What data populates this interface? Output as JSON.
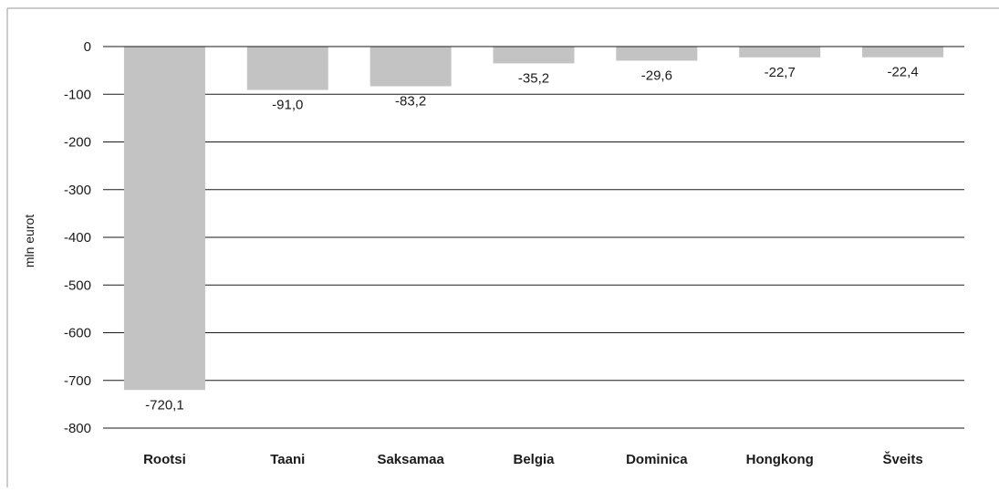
{
  "chart_data": {
    "type": "bar",
    "categories": [
      "Rootsi",
      "Taani",
      "Saksamaa",
      "Belgia",
      "Dominica",
      "Hongkong",
      "Šveits"
    ],
    "values": [
      -720.1,
      -91.0,
      -83.2,
      -35.2,
      -29.6,
      -22.7,
      -22.4
    ],
    "value_labels": [
      "-720,1",
      "-91,0",
      "-83,2",
      "-35,2",
      "-29,6",
      "-22,7",
      "-22,4"
    ],
    "title": "",
    "xlabel": "",
    "ylabel": "mln eurot",
    "ylim": [
      -800,
      0
    ],
    "yticks": [
      0,
      -100,
      -200,
      -300,
      -400,
      -500,
      -600,
      -700,
      -800
    ],
    "ytick_labels": [
      "0",
      "-100",
      "-200",
      "-300",
      "-400",
      "-500",
      "-600",
      "-700",
      "-800"
    ],
    "grid": true,
    "legend": "none",
    "bar_color": "#c3c3c3",
    "grid_color": "#1a1a1a",
    "frame_color": "#9a9a9a"
  }
}
